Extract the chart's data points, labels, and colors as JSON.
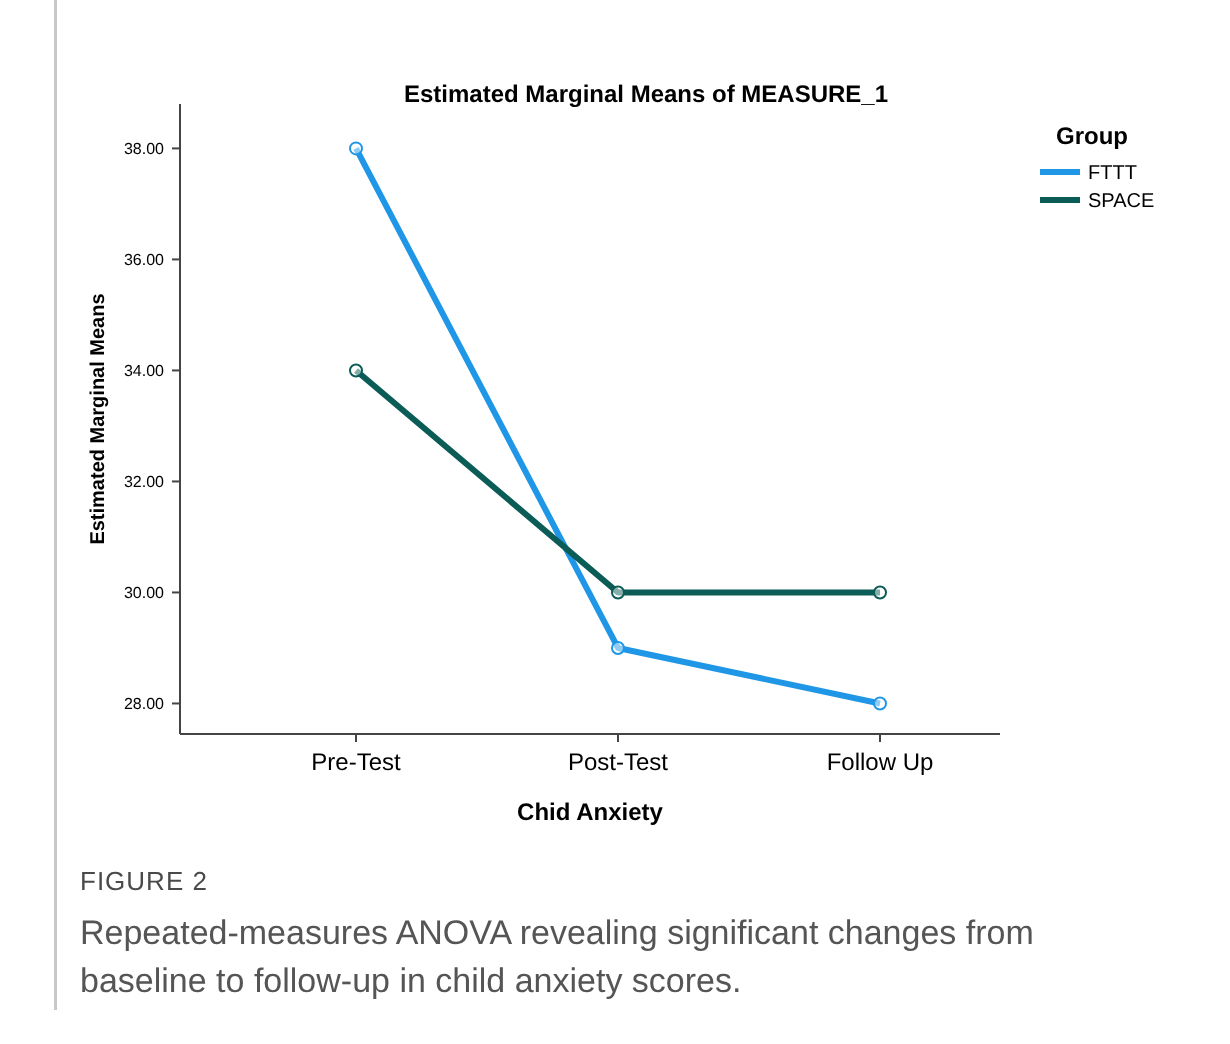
{
  "chart_data": {
    "type": "line",
    "title": "Estimated Marginal Means of MEASURE_1",
    "xlabel": "Chid Anxiety",
    "ylabel": "Estimated Marginal Means",
    "legend_title": "Group",
    "categories": [
      "Pre-Test",
      "Post-Test",
      "Follow Up"
    ],
    "series": [
      {
        "name": "FTTT",
        "color": "#1f97e6",
        "values": [
          38,
          29,
          28
        ]
      },
      {
        "name": "SPACE",
        "color": "#0b5c57",
        "values": [
          34,
          30,
          30
        ]
      }
    ],
    "ylim": [
      27.45,
      38.8
    ],
    "yticks": [
      {
        "value": 28,
        "label": "28.00"
      },
      {
        "value": 30,
        "label": "30.00"
      },
      {
        "value": 32,
        "label": "32.00"
      },
      {
        "value": 34,
        "label": "34.00"
      },
      {
        "value": 36,
        "label": "36.00"
      },
      {
        "value": 38,
        "label": "38.00"
      }
    ],
    "grid": false,
    "legend": "top right",
    "marker": "circle",
    "line_style": "solid",
    "annotations": [
      "FIGURE 2",
      "Repeated-measures ANOVA revealing significant changes from baseline to follow-up in child anxiety scores."
    ]
  }
}
